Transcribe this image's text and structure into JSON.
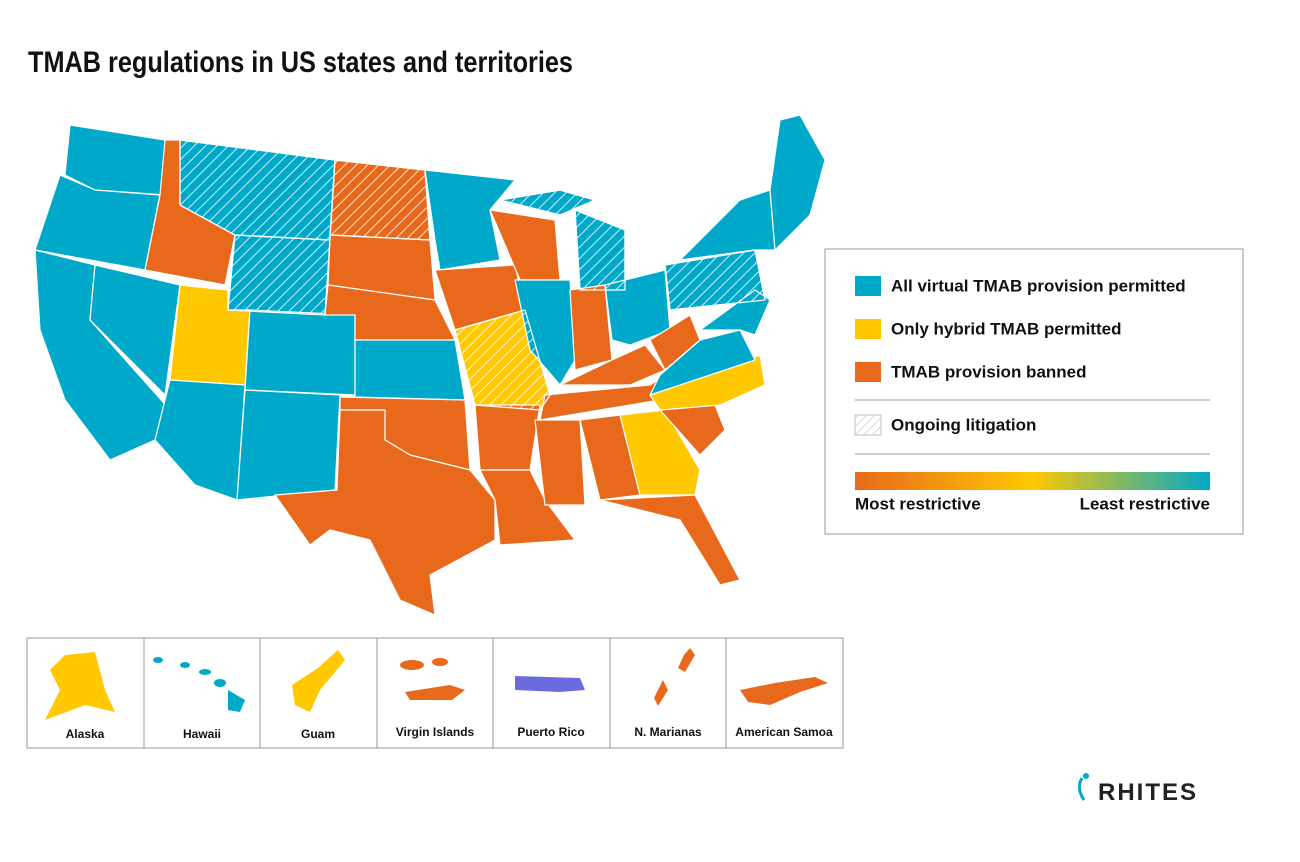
{
  "title": "TMAB regulations in US states and territories",
  "legend": {
    "items": [
      "All virtual TMAB provision permitted",
      "Only hybrid TMAB permitted",
      "TMAB provision banned",
      "Ongoing litigation"
    ],
    "scale": {
      "low": "Most restrictive",
      "high": "Least restrictive"
    }
  },
  "territories": [
    "Alaska",
    "Hawaii",
    "Guam",
    "Virgin Islands",
    "Puerto Rico",
    "N. Marianas",
    "American Samoa"
  ],
  "logo": "RHITES"
}
